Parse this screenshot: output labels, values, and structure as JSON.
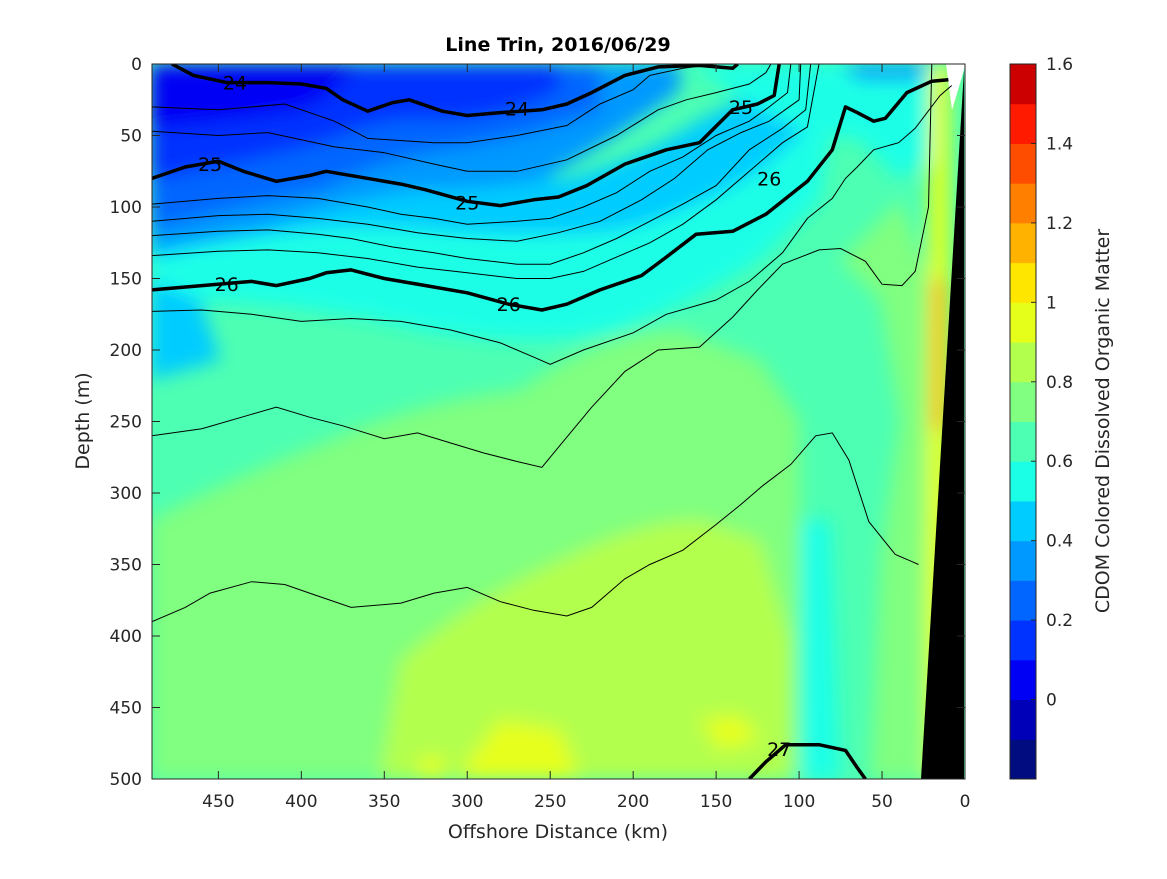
{
  "chart_data": {
    "type": "heatmap",
    "title": "Line Trin, 2016/06/29",
    "xlabel": "Offshore Distance (km)",
    "ylabel": "Depth (m)",
    "xlim": [
      490,
      0
    ],
    "ylim": [
      0,
      500
    ],
    "x_reversed": true,
    "y_reversed": true,
    "xticks": [
      450,
      400,
      350,
      300,
      250,
      200,
      150,
      100,
      50,
      0
    ],
    "yticks": [
      0,
      50,
      100,
      150,
      200,
      250,
      300,
      350,
      400,
      450,
      500
    ],
    "colorbar": {
      "label": "CDOM Colored Dissolved Organic Matter",
      "range": [
        -0.2,
        1.6
      ],
      "ticks": [
        0,
        0.2,
        0.4,
        0.6,
        0.8,
        1,
        1.2,
        1.4,
        1.6
      ],
      "levels": [
        -0.2,
        -0.1,
        0,
        0.1,
        0.2,
        0.3,
        0.4,
        0.5,
        0.6,
        0.7,
        0.8,
        0.9,
        1.0,
        1.1,
        1.2,
        1.3,
        1.4,
        1.5,
        1.6
      ],
      "colors": [
        "#000c80",
        "#0000b8",
        "#0000f5",
        "#0033ff",
        "#0066ff",
        "#0099ff",
        "#00ccff",
        "#1affe6",
        "#4dffb3",
        "#80ff80",
        "#b3ff4d",
        "#e6ff1a",
        "#ffe600",
        "#ffb300",
        "#ff8000",
        "#ff4d00",
        "#ff1a00",
        "#cc0000"
      ]
    },
    "contours": {
      "labeled": [
        {
          "label": "24",
          "points": [
            [
              478,
              0
            ],
            [
              465,
              8
            ],
            [
              445,
              13
            ],
            [
              420,
              13
            ],
            [
              400,
              14
            ],
            [
              385,
              17
            ],
            [
              375,
              25
            ],
            [
              360,
              33
            ],
            [
              345,
              27
            ],
            [
              335,
              25
            ],
            [
              315,
              33
            ],
            [
              300,
              36
            ],
            [
              280,
              34
            ],
            [
              255,
              32
            ],
            [
              240,
              28
            ],
            [
              225,
              20
            ],
            [
              205,
              8
            ],
            [
              185,
              2
            ],
            [
              160,
              1
            ],
            [
              140,
              3
            ],
            [
              137,
              0
            ]
          ]
        },
        {
          "label": "25",
          "points": [
            [
              490,
              80
            ],
            [
              470,
              72
            ],
            [
              450,
              68
            ],
            [
              435,
              75
            ],
            [
              415,
              82
            ],
            [
              395,
              78
            ],
            [
              385,
              75
            ],
            [
              355,
              81
            ],
            [
              340,
              84
            ],
            [
              325,
              88
            ],
            [
              300,
              96
            ],
            [
              280,
              99
            ],
            [
              260,
              95
            ],
            [
              245,
              93
            ],
            [
              228,
              85
            ],
            [
              205,
              70
            ],
            [
              180,
              60
            ],
            [
              160,
              55
            ],
            [
              140,
              32
            ],
            [
              125,
              28
            ],
            [
              115,
              22
            ],
            [
              112,
              0
            ]
          ]
        },
        {
          "label": "26",
          "points": [
            [
              490,
              158
            ],
            [
              460,
              155
            ],
            [
              430,
              152
            ],
            [
              415,
              155
            ],
            [
              395,
              150
            ],
            [
              385,
              146
            ],
            [
              370,
              144
            ],
            [
              350,
              150
            ],
            [
              325,
              155
            ],
            [
              300,
              160
            ],
            [
              275,
              168
            ],
            [
              255,
              172
            ],
            [
              240,
              168
            ],
            [
              220,
              158
            ],
            [
              195,
              148
            ],
            [
              180,
              135
            ],
            [
              162,
              119
            ],
            [
              140,
              117
            ],
            [
              120,
              105
            ],
            [
              95,
              82
            ],
            [
              80,
              60
            ],
            [
              72,
              30
            ],
            [
              65,
              34
            ],
            [
              55,
              40
            ],
            [
              48,
              38
            ],
            [
              35,
              20
            ],
            [
              20,
              12
            ],
            [
              10,
              11
            ]
          ]
        },
        {
          "label": "27",
          "points": [
            [
              130,
              500
            ],
            [
              120,
              488
            ],
            [
              108,
              476
            ],
            [
              88,
              476
            ],
            [
              72,
              480
            ],
            [
              65,
              492
            ],
            [
              60,
              500
            ]
          ]
        }
      ],
      "thin": [
        [
          [
            490,
            30
          ],
          [
            450,
            32
          ],
          [
            410,
            28
          ],
          [
            380,
            40
          ],
          [
            360,
            52
          ],
          [
            320,
            55
          ],
          [
            300,
            55
          ],
          [
            270,
            50
          ],
          [
            240,
            43
          ],
          [
            220,
            28
          ],
          [
            200,
            18
          ],
          [
            190,
            8
          ],
          [
            170,
            3
          ],
          [
            150,
            0
          ]
        ],
        [
          [
            490,
            47
          ],
          [
            450,
            50
          ],
          [
            420,
            48
          ],
          [
            380,
            58
          ],
          [
            350,
            62
          ],
          [
            320,
            70
          ],
          [
            300,
            75
          ],
          [
            270,
            75
          ],
          [
            240,
            67
          ],
          [
            210,
            50
          ],
          [
            185,
            32
          ],
          [
            168,
            25
          ],
          [
            150,
            20
          ],
          [
            130,
            14
          ],
          [
            120,
            6
          ],
          [
            117,
            0
          ]
        ],
        [
          [
            490,
            98
          ],
          [
            450,
            94
          ],
          [
            420,
            92
          ],
          [
            390,
            94
          ],
          [
            360,
            100
          ],
          [
            340,
            105
          ],
          [
            320,
            108
          ],
          [
            300,
            112
          ],
          [
            270,
            110
          ],
          [
            250,
            108
          ],
          [
            230,
            100
          ],
          [
            210,
            90
          ],
          [
            190,
            75
          ],
          [
            170,
            65
          ],
          [
            150,
            50
          ],
          [
            130,
            40
          ],
          [
            118,
            30
          ],
          [
            107,
            20
          ],
          [
            105,
            0
          ]
        ],
        [
          [
            490,
            110
          ],
          [
            450,
            106
          ],
          [
            420,
            105
          ],
          [
            390,
            108
          ],
          [
            360,
            112
          ],
          [
            330,
            118
          ],
          [
            300,
            122
          ],
          [
            270,
            124
          ],
          [
            245,
            118
          ],
          [
            220,
            110
          ],
          [
            195,
            95
          ],
          [
            175,
            80
          ],
          [
            155,
            60
          ],
          [
            135,
            48
          ],
          [
            118,
            40
          ],
          [
            100,
            25
          ],
          [
            99,
            0
          ]
        ],
        [
          [
            490,
            120
          ],
          [
            450,
            117
          ],
          [
            420,
            116
          ],
          [
            390,
            119
          ],
          [
            370,
            122
          ],
          [
            345,
            128
          ],
          [
            320,
            132
          ],
          [
            300,
            136
          ],
          [
            270,
            140
          ],
          [
            250,
            140
          ],
          [
            230,
            132
          ],
          [
            210,
            122
          ],
          [
            190,
            110
          ],
          [
            170,
            98
          ],
          [
            150,
            85
          ],
          [
            130,
            60
          ],
          [
            110,
            45
          ],
          [
            96,
            32
          ],
          [
            93,
            0
          ]
        ],
        [
          [
            490,
            134
          ],
          [
            450,
            131
          ],
          [
            420,
            130
          ],
          [
            390,
            132
          ],
          [
            360,
            136
          ],
          [
            330,
            142
          ],
          [
            300,
            146
          ],
          [
            270,
            150
          ],
          [
            250,
            150
          ],
          [
            230,
            145
          ],
          [
            210,
            135
          ],
          [
            190,
            125
          ],
          [
            170,
            112
          ],
          [
            150,
            95
          ],
          [
            130,
            75
          ],
          [
            110,
            55
          ],
          [
            95,
            44
          ],
          [
            88,
            0
          ]
        ],
        [
          [
            490,
            173
          ],
          [
            460,
            172
          ],
          [
            430,
            175
          ],
          [
            400,
            180
          ],
          [
            370,
            178
          ],
          [
            340,
            180
          ],
          [
            310,
            186
          ],
          [
            280,
            195
          ],
          [
            260,
            205
          ],
          [
            250,
            210
          ],
          [
            230,
            200
          ],
          [
            200,
            188
          ],
          [
            180,
            175
          ],
          [
            150,
            165
          ],
          [
            130,
            152
          ],
          [
            110,
            132
          ],
          [
            95,
            108
          ],
          [
            80,
            94
          ],
          [
            72,
            80
          ],
          [
            65,
            72
          ],
          [
            55,
            60
          ],
          [
            40,
            55
          ],
          [
            30,
            45
          ],
          [
            15,
            22
          ],
          [
            8,
            15
          ]
        ],
        [
          [
            490,
            260
          ],
          [
            460,
            255
          ],
          [
            430,
            245
          ],
          [
            415,
            240
          ],
          [
            395,
            247
          ],
          [
            375,
            253
          ],
          [
            350,
            262
          ],
          [
            330,
            258
          ],
          [
            310,
            265
          ],
          [
            290,
            272
          ],
          [
            270,
            278
          ],
          [
            255,
            282
          ],
          [
            245,
            268
          ],
          [
            225,
            240
          ],
          [
            205,
            215
          ],
          [
            185,
            200
          ],
          [
            160,
            198
          ],
          [
            140,
            177
          ],
          [
            125,
            158
          ],
          [
            110,
            140
          ],
          [
            88,
            130
          ],
          [
            75,
            129
          ],
          [
            60,
            138
          ],
          [
            50,
            154
          ],
          [
            38,
            155
          ],
          [
            30,
            145
          ],
          [
            22,
            100
          ],
          [
            20,
            0
          ]
        ],
        [
          [
            490,
            390
          ],
          [
            470,
            380
          ],
          [
            455,
            370
          ],
          [
            430,
            362
          ],
          [
            410,
            364
          ],
          [
            390,
            372
          ],
          [
            370,
            380
          ],
          [
            340,
            377
          ],
          [
            320,
            370
          ],
          [
            300,
            366
          ],
          [
            280,
            376
          ],
          [
            260,
            382
          ],
          [
            240,
            386
          ],
          [
            225,
            380
          ],
          [
            205,
            360
          ],
          [
            190,
            350
          ],
          [
            170,
            340
          ],
          [
            150,
            322
          ],
          [
            135,
            308
          ],
          [
            122,
            295
          ],
          [
            105,
            280
          ],
          [
            90,
            260
          ],
          [
            80,
            258
          ],
          [
            70,
            277
          ],
          [
            58,
            320
          ],
          [
            42,
            343
          ],
          [
            32,
            348
          ],
          [
            28,
            350
          ]
        ]
      ]
    }
  }
}
